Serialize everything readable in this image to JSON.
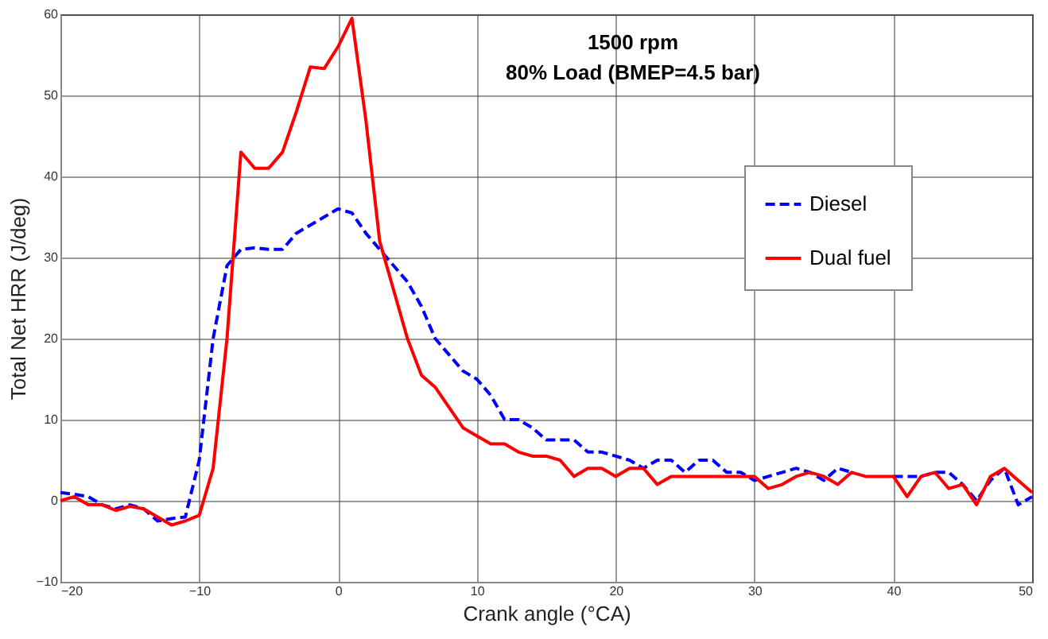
{
  "chart_data": {
    "type": "line",
    "xlabel": "Crank angle (°CA)",
    "ylabel": "Total Net HRR (J/deg)",
    "annotations": [
      "1500 rpm",
      "80% Load (BMEP=4.5 bar)"
    ],
    "x": [
      -20,
      -19,
      -18,
      -17,
      -16,
      -15,
      -14,
      -13,
      -12,
      -11,
      -10,
      -9,
      -8,
      -7,
      -6,
      -5,
      -4,
      -3,
      -2,
      -1,
      0,
      1,
      2,
      3,
      4,
      5,
      6,
      7,
      8,
      9,
      10,
      11,
      12,
      13,
      14,
      15,
      16,
      17,
      18,
      19,
      20,
      21,
      22,
      23,
      24,
      25,
      26,
      27,
      28,
      29,
      30,
      31,
      32,
      33,
      34,
      35,
      36,
      37,
      38,
      39,
      40,
      41,
      42,
      43,
      44,
      45,
      46,
      47,
      48,
      49,
      50
    ],
    "series": [
      {
        "name": "Diesel",
        "color": "#0000ff",
        "line_style": "dashed",
        "values": [
          1,
          0.8,
          0.5,
          -0.5,
          -1,
          -0.5,
          -1,
          -2.5,
          -2.2,
          -2,
          5,
          20,
          29,
          31,
          31.2,
          31,
          31,
          33,
          34,
          35,
          36,
          35.5,
          33,
          31,
          29,
          27,
          24,
          20,
          18,
          16,
          15,
          13,
          10,
          10,
          9,
          7.5,
          7.5,
          7.5,
          6,
          6,
          5.5,
          5,
          4,
          5,
          5,
          3.5,
          5,
          5,
          3.5,
          3.5,
          2.5,
          3,
          3.5,
          4,
          3.5,
          2.5,
          4,
          3.5,
          null,
          null,
          3,
          3,
          3,
          3.5,
          3.5,
          2,
          0,
          2.5,
          4,
          -0.5,
          0.5
        ]
      },
      {
        "name": "Dual fuel",
        "color": "#ff0000",
        "line_style": "solid",
        "values": [
          0,
          0.5,
          -0.5,
          -0.5,
          -1.2,
          -0.7,
          -1,
          -2,
          -3,
          -2.5,
          -1.8,
          4,
          20,
          43,
          41,
          41,
          43,
          48,
          53.5,
          53.3,
          56,
          59.5,
          47,
          32,
          26,
          20,
          15.5,
          14,
          11.5,
          9,
          8,
          7,
          7,
          6,
          5.5,
          5.5,
          5,
          3,
          4,
          4,
          3,
          4,
          4,
          2,
          3,
          3,
          3,
          3,
          3,
          3,
          3,
          1.5,
          2,
          3,
          3.5,
          3,
          2,
          3.5,
          3,
          3,
          3,
          0.5,
          3,
          3.5,
          1.5,
          2,
          -0.5,
          3,
          4,
          2.5,
          1
        ]
      }
    ],
    "xlim": [
      -20,
      50
    ],
    "xticks": [
      -20,
      -10,
      0,
      10,
      20,
      30,
      40,
      50
    ],
    "ylim": [
      -10,
      60
    ],
    "yticks": [
      -10,
      0,
      10,
      20,
      30,
      40,
      50,
      60
    ],
    "grid": true,
    "legend": "top right"
  }
}
